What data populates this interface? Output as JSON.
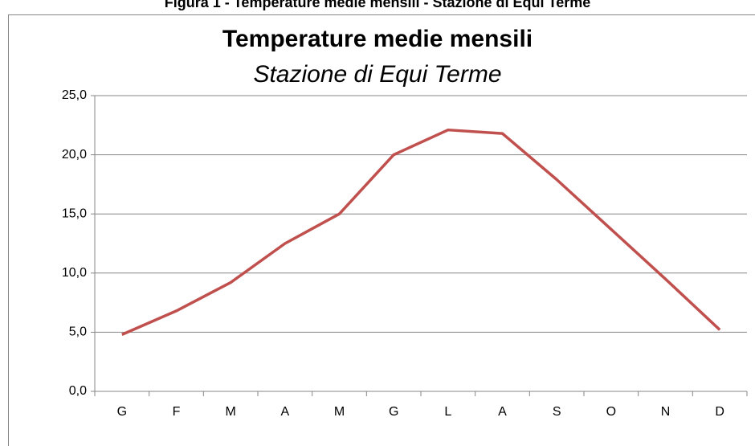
{
  "caption": "Figura 1 - Temperature medie mensili - Stazione di Equi Terme",
  "chart_data": {
    "type": "line",
    "title": "Temperature medie mensili",
    "subtitle": "Stazione di Equi Terme",
    "categories": [
      "G",
      "F",
      "M",
      "A",
      "M",
      "G",
      "L",
      "A",
      "S",
      "O",
      "N",
      "D"
    ],
    "values": [
      4.8,
      6.8,
      9.2,
      12.5,
      15.0,
      20.0,
      22.1,
      21.8,
      17.9,
      13.7,
      9.5,
      5.2
    ],
    "color": "#c0504d",
    "ylim": [
      0,
      25
    ],
    "yticks": [
      {
        "value": 0,
        "label": "0,0"
      },
      {
        "value": 5,
        "label": "5,0"
      },
      {
        "value": 10,
        "label": "10,0"
      },
      {
        "value": 15,
        "label": "15,0"
      },
      {
        "value": 20,
        "label": "20,0"
      },
      {
        "value": 25,
        "label": "25,0"
      }
    ],
    "grid": true
  }
}
